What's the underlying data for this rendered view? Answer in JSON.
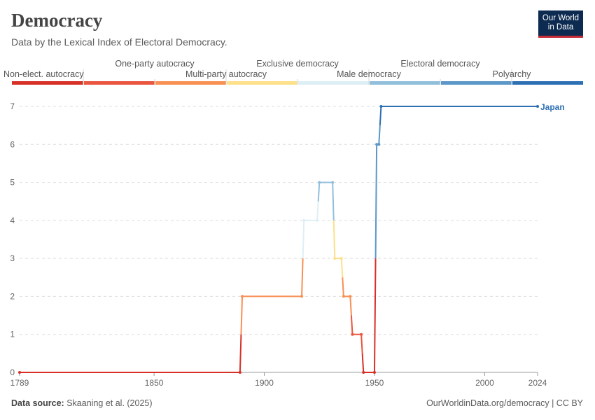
{
  "header": {
    "title": "Democracy",
    "subtitle": "Data by the Lexical Index of Electoral Democracy."
  },
  "logo": {
    "line1": "Our World",
    "line2": "in Data"
  },
  "footer": {
    "source_label": "Data source:",
    "source_text": "Skaaning et al. (2025)",
    "url_text": "OurWorldinData.org/democracy | CC BY"
  },
  "chart_data": {
    "type": "line",
    "title": "Democracy",
    "subtitle": "Data by the Lexical Index of Electoral Democracy.",
    "xlim": [
      1789,
      2024
    ],
    "ylim": [
      0,
      7
    ],
    "x_ticks": [
      1789,
      1850,
      1900,
      1950,
      2000,
      2024
    ],
    "y_ticks": [
      0,
      1,
      2,
      3,
      4,
      5,
      6,
      7
    ],
    "grid": "horizontal",
    "legend": {
      "placement": "top",
      "categories": [
        {
          "label": "Non-elect. autocracy",
          "value": 0,
          "color": "#d73027"
        },
        {
          "label": "One-party autocracy",
          "value": 1,
          "color": "#e9553f"
        },
        {
          "label": "Multi-party autocracy",
          "value": 2,
          "color": "#f88f53"
        },
        {
          "label": "Exclusive democracy",
          "value": 3,
          "color": "#fee08b"
        },
        {
          "label": "Male democracy",
          "value": 4,
          "color": "#ddeff5"
        },
        {
          "label": "Electoral democracy",
          "value": 5,
          "color": "#91bfdb"
        },
        {
          "label": "Polyarchy",
          "value": 6,
          "color": "#5b97c8"
        },
        {
          "label": "",
          "value": 7,
          "color": "#2c6fb2"
        }
      ]
    },
    "series": [
      {
        "name": "Japan",
        "color": "#2c6fb2",
        "points": [
          [
            1789,
            0
          ],
          [
            1889,
            0
          ],
          [
            1890,
            2
          ],
          [
            1917,
            2
          ],
          [
            1918,
            4
          ],
          [
            1924,
            4
          ],
          [
            1925,
            5
          ],
          [
            1931,
            5
          ],
          [
            1932,
            3
          ],
          [
            1935,
            3
          ],
          [
            1936,
            2
          ],
          [
            1939,
            2
          ],
          [
            1940,
            1
          ],
          [
            1944,
            1
          ],
          [
            1945,
            0
          ],
          [
            1950,
            0
          ],
          [
            1951,
            6
          ],
          [
            1952,
            6
          ],
          [
            1953,
            7
          ],
          [
            2024,
            7
          ]
        ]
      }
    ]
  }
}
